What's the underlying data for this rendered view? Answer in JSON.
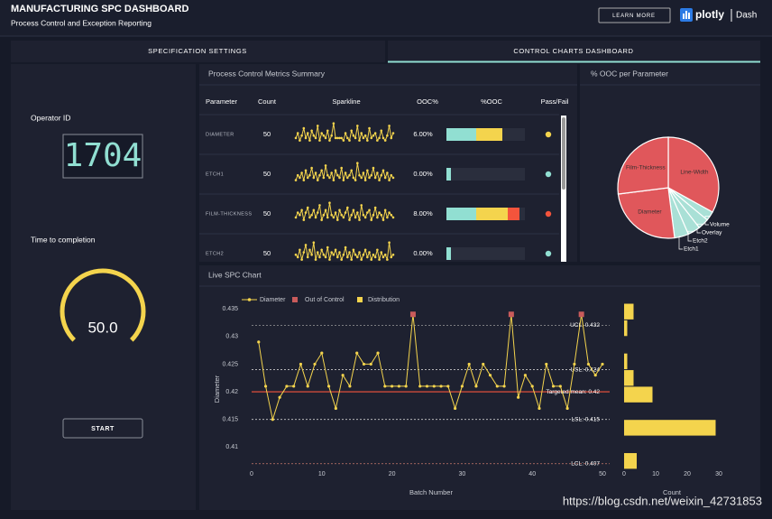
{
  "header": {
    "title": "MANUFACTURING SPC DASHBOARD",
    "subtitle": "Process Control and Exception Reporting",
    "button": "LEARN MORE",
    "brand": "plotly",
    "brand_suffix": "Dash"
  },
  "tabs": [
    "SPECIFICATION SETTINGS",
    "CONTROL CHARTS DASHBOARD"
  ],
  "sidebar": {
    "operator_label": "Operator ID",
    "operator_id": "1704",
    "time_label": "Time to completion",
    "gauge": {
      "value": 50,
      "label": "50.0"
    },
    "gauge_color": "#f4d44d",
    "button": "START"
  },
  "metrics": {
    "title": "Process Control Metrics Summary",
    "columns": [
      "Parameter",
      "Count",
      "Sparkline",
      "OOC%",
      "%OOC",
      "Pass/Fail"
    ],
    "sparkline_color": "#f4d44d",
    "rows": [
      {
        "parameter": "DIAMETER",
        "count": 50,
        "ooc": {
          "value": 6,
          "label": "6.00%"
        },
        "status_color": "#f4d44d",
        "sparkline": [
          3,
          5,
          2,
          4,
          7,
          3,
          5,
          2,
          6,
          4,
          3,
          8,
          2,
          5,
          4,
          3,
          6,
          2,
          4,
          9,
          3,
          3,
          3,
          3,
          2,
          5,
          3,
          2,
          6,
          4,
          3,
          8,
          2,
          5,
          3,
          4,
          2,
          7,
          3,
          4,
          5,
          2,
          3,
          6,
          3,
          2,
          4,
          8,
          3,
          5
        ]
      },
      {
        "parameter": "ETCH1",
        "count": 50,
        "ooc": {
          "value": 0,
          "label": "0.00%"
        },
        "status_color": "#91dfd2",
        "sparkline": [
          2,
          4,
          3,
          5,
          2,
          6,
          3,
          4,
          7,
          3,
          5,
          2,
          4,
          6,
          3,
          8,
          4,
          3,
          5,
          2,
          6,
          4,
          3,
          7,
          2,
          5,
          3,
          4,
          6,
          3,
          2,
          9,
          4,
          3,
          5,
          2,
          6,
          3,
          4,
          7,
          3,
          5,
          2,
          4,
          6,
          3,
          5,
          2,
          4,
          3
        ]
      },
      {
        "parameter": "FILM-THICKNESS",
        "count": 50,
        "ooc": {
          "value": 8,
          "label": "8.00%"
        },
        "status_color": "#f4543c",
        "sparkline": [
          3,
          5,
          4,
          6,
          2,
          5,
          7,
          3,
          4,
          6,
          3,
          5,
          8,
          2,
          4,
          6,
          3,
          9,
          4,
          3,
          5,
          2,
          6,
          4,
          3,
          5,
          7,
          2,
          4,
          6,
          3,
          5,
          2,
          8,
          4,
          3,
          5,
          6,
          2,
          4,
          7,
          3,
          5,
          4,
          2,
          6,
          3,
          5,
          4,
          3
        ]
      },
      {
        "parameter": "ETCH2",
        "count": 50,
        "ooc": {
          "value": 0,
          "label": "0.00%"
        },
        "status_color": "#91dfd2",
        "sparkline": [
          4,
          3,
          6,
          2,
          5,
          8,
          3,
          6,
          4,
          9,
          2,
          5,
          3,
          6,
          4,
          3,
          7,
          2,
          5,
          4,
          6,
          3,
          5,
          2,
          4,
          7,
          3,
          5,
          2,
          6,
          4,
          3,
          5,
          2,
          4,
          6,
          3,
          5,
          2,
          4,
          3,
          6,
          2,
          5,
          3,
          4,
          2,
          9,
          3,
          4
        ]
      }
    ]
  },
  "ooc_pie": {
    "type": "pie",
    "title": "% OOC per Parameter",
    "categories": [
      "Line-Width",
      "Volume",
      "Overlay",
      "Etch2",
      "Etch1",
      "Diameter",
      "Film-Thickness"
    ],
    "values": [
      33,
      3,
      3.5,
      4,
      4.5,
      25,
      27
    ],
    "colors": [
      "#e0575b",
      "#a9e0d6",
      "#a9e0d6",
      "#a9e0d6",
      "#a9e0d6",
      "#e0575b",
      "#e0575b"
    ]
  },
  "spc_chart": {
    "type": "line",
    "title": "Live SPC Chart",
    "xlabel": "Batch Number",
    "ylabel": "Diameter",
    "x": [
      1,
      2,
      3,
      4,
      5,
      6,
      7,
      8,
      9,
      10,
      11,
      12,
      13,
      14,
      15,
      16,
      17,
      18,
      19,
      20,
      21,
      22,
      23,
      24,
      25,
      26,
      27,
      28,
      29,
      30,
      31,
      32,
      33,
      34,
      35,
      36,
      37,
      38,
      39,
      40,
      41,
      42,
      43,
      44,
      45,
      46,
      47,
      48,
      49,
      50
    ],
    "series": [
      {
        "name": "Diameter",
        "color": "#f4d44d",
        "values": [
          0.429,
          0.421,
          0.415,
          0.419,
          0.421,
          0.421,
          0.425,
          0.421,
          0.425,
          0.427,
          0.421,
          0.417,
          0.423,
          0.421,
          0.427,
          0.425,
          0.425,
          0.427,
          0.421,
          0.421,
          0.421,
          0.421,
          0.434,
          0.421,
          0.421,
          0.421,
          0.421,
          0.421,
          0.417,
          0.421,
          0.425,
          0.421,
          0.425,
          0.423,
          0.421,
          0.421,
          0.434,
          0.419,
          0.423,
          0.421,
          0.417,
          0.425,
          0.421,
          0.421,
          0.417,
          0.425,
          0.434,
          0.425,
          0.423,
          0.425
        ]
      },
      {
        "name": "Out of Control",
        "color": "#c95b5b",
        "x": [
          23,
          37,
          47
        ],
        "values": [
          0.434,
          0.434,
          0.434
        ]
      }
    ],
    "histogram": {
      "name": "Distribution",
      "color": "#f4d44d",
      "xlabel": "Count",
      "bins": [
        0.406,
        0.409,
        0.412,
        0.415,
        0.418,
        0.421,
        0.424,
        0.427,
        0.43,
        0.433,
        0.436
      ],
      "counts": [
        4,
        0,
        29,
        0,
        9,
        3,
        1,
        0,
        1,
        3
      ],
      "xlim": [
        0,
        42
      ],
      "xticks": [
        0,
        10,
        20,
        30
      ]
    },
    "reference_lines": [
      {
        "value": 0.432,
        "label": "UCL: 0.432",
        "color": "#9a9a9a",
        "dash": true
      },
      {
        "value": 0.424,
        "label": "USL: 0.424",
        "color": "#cccccc",
        "dash": true
      },
      {
        "value": 0.42,
        "label": "Targeted mean: 0.42",
        "color": "#f4543c",
        "dash": false
      },
      {
        "value": 0.415,
        "label": "LSL: 0.415",
        "color": "#cccccc",
        "dash": true
      },
      {
        "value": 0.407,
        "label": "LCL: 0.407",
        "color": "#c97a6b",
        "dash": true
      }
    ],
    "xlim": [
      0,
      50
    ],
    "xticks": [
      0,
      10,
      20,
      30,
      40,
      50
    ],
    "ylim": [
      0.405,
      0.436
    ],
    "yticks": [
      0.41,
      0.415,
      0.42,
      0.425,
      0.43,
      0.435
    ]
  },
  "watermark": "https://blog.csdn.net/weixin_42731853"
}
